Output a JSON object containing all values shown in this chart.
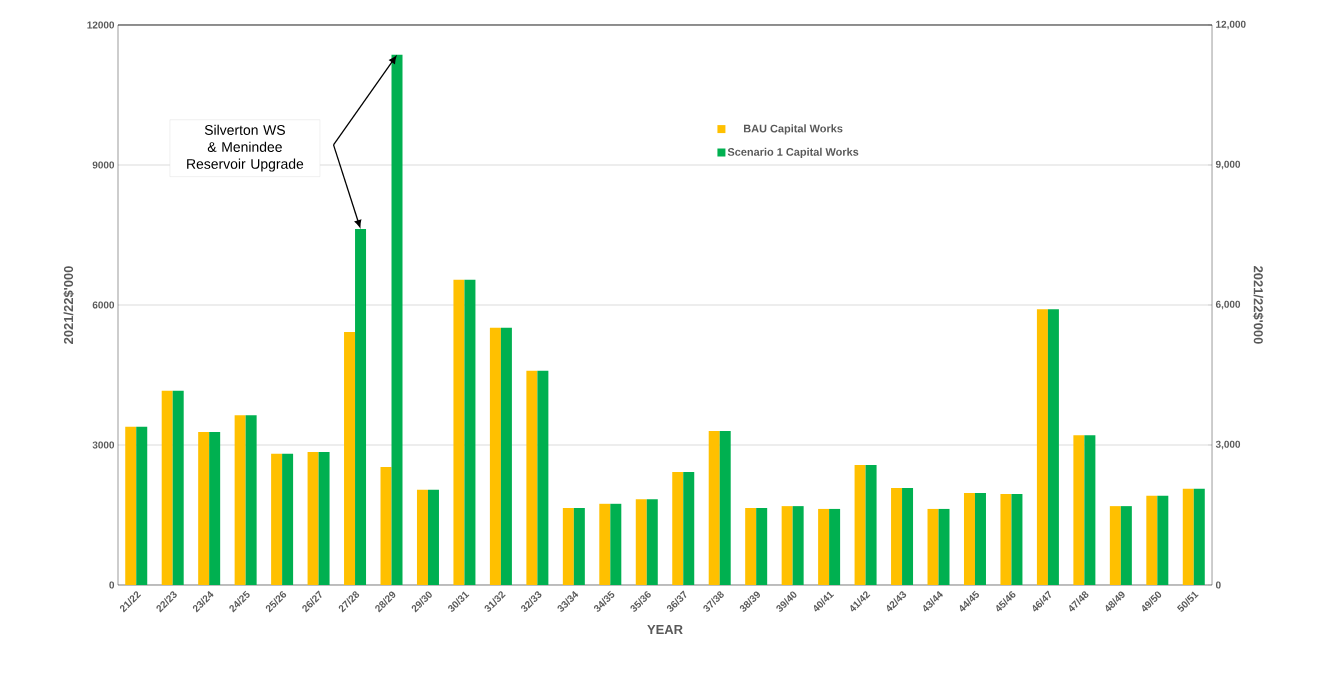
{
  "chart_data": {
    "type": "bar",
    "xlabel": "YEAR",
    "ylabel": "2021/22$'000",
    "y2label": "2021/22$'000",
    "categories": [
      "21/22",
      "22/23",
      "23/24",
      "24/25",
      "25/26",
      "26/27",
      "27/28",
      "28/29",
      "29/30",
      "30/31",
      "31/32",
      "32/33",
      "33/34",
      "34/35",
      "35/36",
      "36/37",
      "37/38",
      "38/39",
      "39/40",
      "40/41",
      "41/42",
      "42/43",
      "43/44",
      "44/45",
      "45/46",
      "46/47",
      "47/48",
      "48/49",
      "49/50",
      "50/51"
    ],
    "series": [
      {
        "name": "BAU Capital Works",
        "color": "#ffc000",
        "values": [
          3390,
          4160,
          3280,
          3640,
          2810,
          2850,
          5420,
          2530,
          2040,
          6540,
          5510,
          4590,
          1650,
          1740,
          1840,
          2420,
          3300,
          1650,
          1690,
          1630,
          2570,
          2080,
          1630,
          1970,
          1950,
          5910,
          3210,
          1690,
          1910,
          2060
        ]
      },
      {
        "name": "Scenario 1 Capital Works",
        "color": "#00b050",
        "values": [
          3390,
          4160,
          3280,
          3640,
          2810,
          2850,
          7630,
          11360,
          2040,
          6540,
          5510,
          4590,
          1650,
          1740,
          1840,
          2420,
          3300,
          1650,
          1690,
          1630,
          2570,
          2080,
          1630,
          1970,
          1950,
          5910,
          3210,
          1690,
          1910,
          2060
        ]
      }
    ],
    "ylim": [
      0,
      12000
    ],
    "yticks": [
      0,
      3000,
      6000,
      9000,
      12000
    ],
    "y2lim": [
      0,
      12000
    ],
    "y2ticks": [
      {
        "value": 0,
        "label": "0"
      },
      {
        "value": 3000,
        "label": "3,000"
      },
      {
        "value": 6000,
        "label": "6,000"
      },
      {
        "value": 9000,
        "label": "9,000"
      },
      {
        "value": 12000,
        "label": "12,000"
      }
    ],
    "grid": "y",
    "legend": "top right",
    "annotations": [
      "Silverton WS & Menindee Reservoir Upgrade"
    ]
  }
}
